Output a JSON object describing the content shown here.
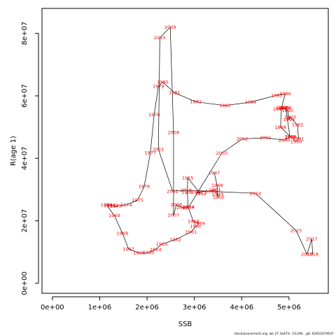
{
  "chart_data": {
    "type": "line",
    "xlabel": "SSB",
    "ylabel": "R(age 1)",
    "xlim": [
      -220000,
      5830000
    ],
    "ylim": [
      -3200000,
      88000000
    ],
    "x_ticks": [
      {
        "value": 0,
        "label": "0e+00"
      },
      {
        "value": 1000000,
        "label": "1e+06"
      },
      {
        "value": 2000000,
        "label": "2e+06"
      },
      {
        "value": 3000000,
        "label": "3e+06"
      },
      {
        "value": 4000000,
        "label": "4e+06"
      },
      {
        "value": 5000000,
        "label": "5e+06"
      }
    ],
    "y_ticks": [
      {
        "value": 0,
        "label": "0e+00"
      },
      {
        "value": 20000000,
        "label": "2e+07"
      },
      {
        "value": 40000000,
        "label": "4e+07"
      },
      {
        "value": 60000000,
        "label": "6e+07"
      },
      {
        "value": 80000000,
        "label": "8e+07"
      }
    ],
    "point_label_color": "#ff0000",
    "line_color": "#000000",
    "footnote": "stockassessment.org, wk.27.3a47d, r11294 , git: 6262207951f",
    "points": [
      {
        "label": "1947",
        "x": 3420000,
        "y": 35400000
      },
      {
        "label": "1948",
        "x": 3480000,
        "y": 31400000
      },
      {
        "label": "1949",
        "x": 3490000,
        "y": 28500000
      },
      {
        "label": "1950",
        "x": 3510000,
        "y": 27500000
      },
      {
        "label": "1951",
        "x": 3440000,
        "y": 30000000
      },
      {
        "label": "1952",
        "x": 3350000,
        "y": 29500000
      },
      {
        "label": "1953",
        "x": 3050000,
        "y": 29200000
      },
      {
        "label": "1954",
        "x": 3130000,
        "y": 28700000
      },
      {
        "label": "1955",
        "x": 2860000,
        "y": 33700000
      },
      {
        "label": "1956",
        "x": 2850000,
        "y": 29100000
      },
      {
        "label": "1957",
        "x": 2870000,
        "y": 24300000
      },
      {
        "label": "1958",
        "x": 2980000,
        "y": 19800000
      },
      {
        "label": "1959",
        "x": 3100000,
        "y": 19100000
      },
      {
        "label": "1960",
        "x": 3030000,
        "y": 18200000
      },
      {
        "label": "1961",
        "x": 2930000,
        "y": 16400000
      },
      {
        "label": "1962",
        "x": 2600000,
        "y": 14000000
      },
      {
        "label": "1963",
        "x": 2310000,
        "y": 12500000
      },
      {
        "label": "1964",
        "x": 2180000,
        "y": 10800000
      },
      {
        "label": "1965",
        "x": 2030000,
        "y": 9800000
      },
      {
        "label": "1966",
        "x": 1830000,
        "y": 9700000
      },
      {
        "label": "1967",
        "x": 1610000,
        "y": 11000000
      },
      {
        "label": "1968",
        "x": 1480000,
        "y": 16000000
      },
      {
        "label": "1969",
        "x": 1310000,
        "y": 21700000
      },
      {
        "label": "1970",
        "x": 1140000,
        "y": 25100000
      },
      {
        "label": "1971",
        "x": 1210000,
        "y": 25000000
      },
      {
        "label": "1972",
        "x": 1280000,
        "y": 24800000
      },
      {
        "label": "1973",
        "x": 1340000,
        "y": 24700000
      },
      {
        "label": "1974",
        "x": 1560000,
        "y": 25100000
      },
      {
        "label": "1975",
        "x": 1800000,
        "y": 26600000
      },
      {
        "label": "1976",
        "x": 1940000,
        "y": 31000000
      },
      {
        "label": "1977",
        "x": 2070000,
        "y": 41800000
      },
      {
        "label": "1978",
        "x": 2150000,
        "y": 54000000
      },
      {
        "label": "1979",
        "x": 2240000,
        "y": 63100000
      },
      {
        "label": "1980",
        "x": 2330000,
        "y": 64400000
      },
      {
        "label": "1981",
        "x": 2580000,
        "y": 61000000
      },
      {
        "label": "1982",
        "x": 3030000,
        "y": 58100000
      },
      {
        "label": "1983",
        "x": 3650000,
        "y": 56900000
      },
      {
        "label": "1984",
        "x": 4190000,
        "y": 58000000
      },
      {
        "label": "1985",
        "x": 4740000,
        "y": 60200000
      },
      {
        "label": "1986",
        "x": 4920000,
        "y": 60700000
      },
      {
        "label": "1987",
        "x": 4840000,
        "y": 56100000
      },
      {
        "label": "1988",
        "x": 4820000,
        "y": 50000000
      },
      {
        "label": "1989",
        "x": 5040000,
        "y": 46800000
      },
      {
        "label": "1990",
        "x": 5150000,
        "y": 45400000
      },
      {
        "label": "1991",
        "x": 5200000,
        "y": 46200000
      },
      {
        "label": "1992",
        "x": 5180000,
        "y": 50700000
      },
      {
        "label": "1993",
        "x": 5020000,
        "y": 53200000
      },
      {
        "label": "1994",
        "x": 5000000,
        "y": 52400000
      },
      {
        "label": "1995",
        "x": 4970000,
        "y": 55300000
      },
      {
        "label": "1996",
        "x": 4880000,
        "y": 56200000
      },
      {
        "label": "1997",
        "x": 4780000,
        "y": 55800000
      },
      {
        "label": "1998",
        "x": 4930000,
        "y": 56200000
      },
      {
        "label": "1999",
        "x": 5020000,
        "y": 46900000
      },
      {
        "label": "2000",
        "x": 4900000,
        "y": 45800000
      },
      {
        "label": "2001",
        "x": 4500000,
        "y": 46600000
      },
      {
        "label": "2002",
        "x": 4010000,
        "y": 46200000
      },
      {
        "label": "2003",
        "x": 3580000,
        "y": 41700000
      },
      {
        "label": "2004",
        "x": 2880000,
        "y": 24400000
      },
      {
        "label": "2005",
        "x": 2740000,
        "y": 24200000
      },
      {
        "label": "2006",
        "x": 2620000,
        "y": 25200000
      },
      {
        "label": "2007",
        "x": 2560000,
        "y": 21800000
      },
      {
        "label": "2008",
        "x": 2560000,
        "y": 48300000
      },
      {
        "label": "2009",
        "x": 2490000,
        "y": 82000000
      },
      {
        "label": "2010",
        "x": 2270000,
        "y": 78600000
      },
      {
        "label": "2011",
        "x": 2240000,
        "y": 42900000
      },
      {
        "label": "2012",
        "x": 2540000,
        "y": 29500000
      },
      {
        "label": "2013",
        "x": 2820000,
        "y": 29800000
      },
      {
        "label": "2014",
        "x": 4290000,
        "y": 28800000
      },
      {
        "label": "2015",
        "x": 5150000,
        "y": 16900000
      },
      {
        "label": "2016",
        "x": 5380000,
        "y": 9300000
      },
      {
        "label": "2017",
        "x": 5480000,
        "y": 14200000
      },
      {
        "label": "2018",
        "x": 5500000,
        "y": 9300000
      }
    ]
  }
}
